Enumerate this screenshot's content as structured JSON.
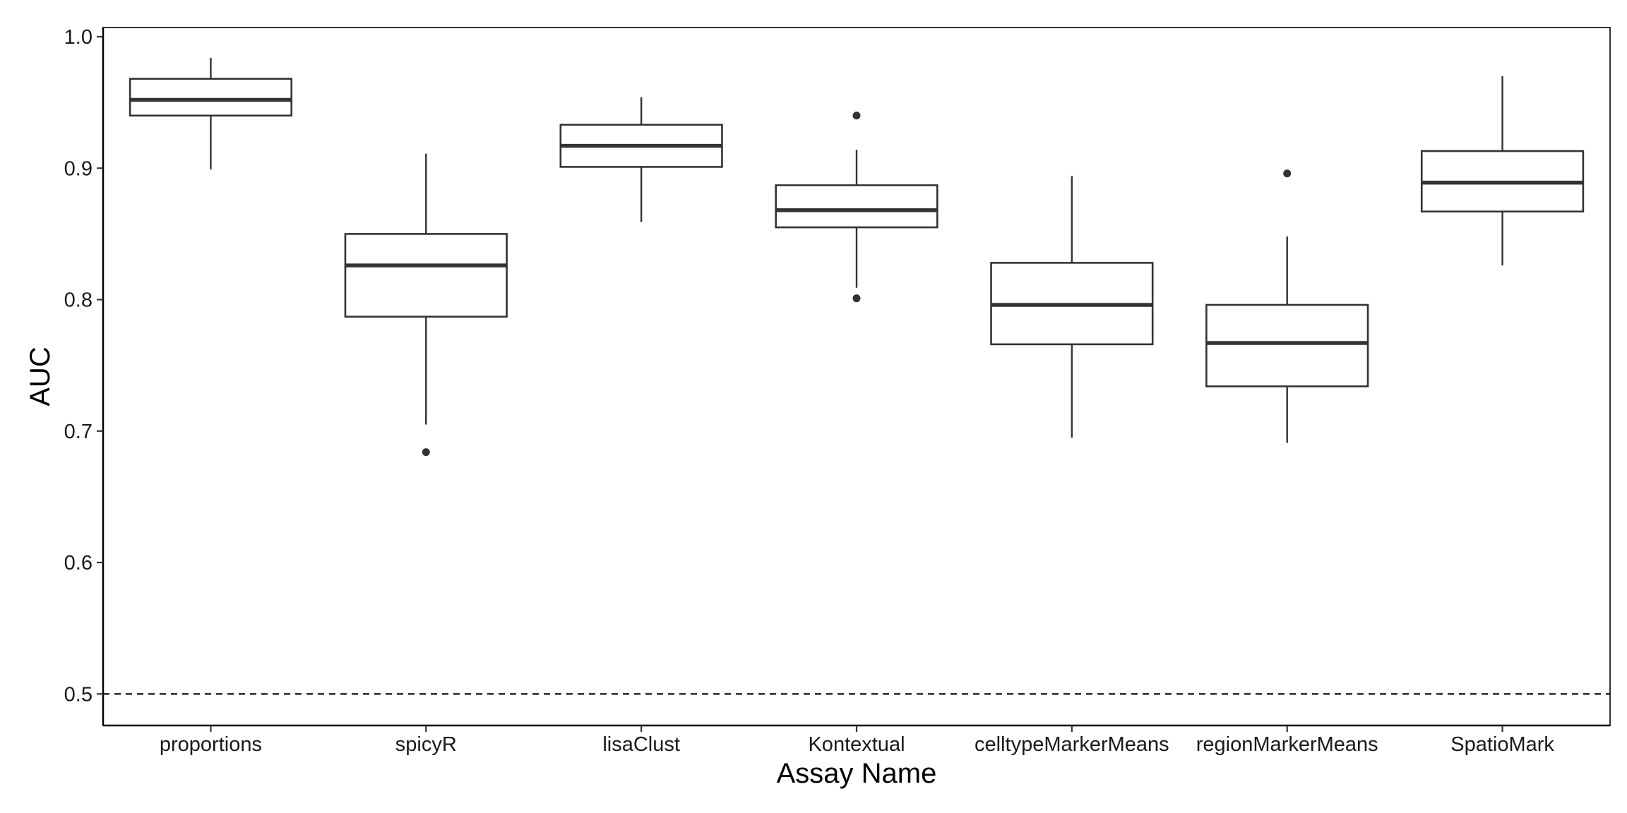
{
  "chart_data": {
    "type": "boxplot",
    "title": "",
    "xlabel": "Assay Name",
    "ylabel": "AUC",
    "ylim": [
      0.476,
      1.007
    ],
    "yticks": [
      "0.5",
      "0.6",
      "0.7",
      "0.8",
      "0.9",
      "1.0"
    ],
    "reference_line": {
      "y": 0.5,
      "style": "dashed"
    },
    "grid": false,
    "legend": "none",
    "categories": [
      "proportions",
      "spicyR",
      "lisaClust",
      "Kontextual",
      "celltypeMarkerMeans",
      "regionMarkerMeans",
      "SpatioMark"
    ],
    "boxes": [
      {
        "category": "proportions",
        "whisker_low": 0.899,
        "q1": 0.94,
        "median": 0.952,
        "q3": 0.968,
        "whisker_high": 0.984,
        "outliers": []
      },
      {
        "category": "spicyR",
        "whisker_low": 0.705,
        "q1": 0.787,
        "median": 0.826,
        "q3": 0.85,
        "whisker_high": 0.911,
        "outliers": [
          0.684
        ]
      },
      {
        "category": "lisaClust",
        "whisker_low": 0.859,
        "q1": 0.901,
        "median": 0.917,
        "q3": 0.933,
        "whisker_high": 0.954,
        "outliers": []
      },
      {
        "category": "Kontextual",
        "whisker_low": 0.809,
        "q1": 0.855,
        "median": 0.868,
        "q3": 0.887,
        "whisker_high": 0.914,
        "outliers": [
          0.94,
          0.801
        ]
      },
      {
        "category": "celltypeMarkerMeans",
        "whisker_low": 0.695,
        "q1": 0.766,
        "median": 0.796,
        "q3": 0.828,
        "whisker_high": 0.894,
        "outliers": []
      },
      {
        "category": "regionMarkerMeans",
        "whisker_low": 0.691,
        "q1": 0.734,
        "median": 0.767,
        "q3": 0.796,
        "whisker_high": 0.848,
        "outliers": [
          0.896
        ]
      },
      {
        "category": "SpatioMark",
        "whisker_low": 0.826,
        "q1": 0.867,
        "median": 0.889,
        "q3": 0.913,
        "whisker_high": 0.97,
        "outliers": []
      }
    ],
    "colors": {
      "box_line": "#333333",
      "box_fill": "#ffffff",
      "axis": "#000000",
      "text": "#1a1a1a"
    }
  }
}
